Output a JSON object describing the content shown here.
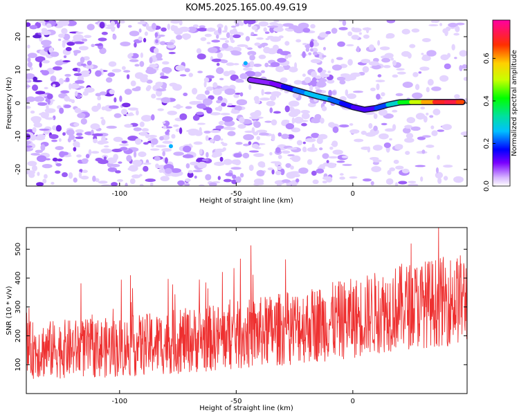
{
  "title": "KOM5.2025.165.00.49.G19",
  "chart_data": [
    {
      "type": "heatmap",
      "xlabel": "Height of straight line (km)",
      "ylabel": "Frequency (Hz)",
      "xlim": [
        -140,
        49
      ],
      "ylim": [
        -25,
        25
      ],
      "xticks": [
        -100,
        -50,
        0
      ],
      "yticks": [
        -20,
        -10,
        0,
        10,
        20
      ],
      "colorbar": {
        "label": "Normalized spectral amplitude",
        "range": [
          0.0,
          0.78
        ],
        "ticks": [
          0.0,
          0.2,
          0.4,
          0.6
        ],
        "tick_labels": [
          "0.0",
          "0.2",
          "0.4",
          "0.6"
        ]
      },
      "ridge": {
        "x": [
          -44,
          -35,
          -30,
          -25,
          -20,
          -15,
          -10,
          -5,
          0,
          5,
          10,
          15,
          20,
          25,
          30,
          35,
          40,
          45,
          47
        ],
        "y": [
          7,
          6,
          5,
          4,
          3,
          2,
          1.2,
          0,
          -1.2,
          -2,
          -1.5,
          -0.5,
          0.2,
          0.3,
          0.3,
          0.3,
          0.3,
          0.3,
          0.3
        ],
        "amplitude": [
          0.1,
          0.1,
          0.12,
          0.2,
          0.25,
          0.28,
          0.25,
          0.18,
          0.15,
          0.12,
          0.15,
          0.25,
          0.35,
          0.45,
          0.55,
          0.65,
          0.72,
          0.7,
          0.6
        ]
      }
    },
    {
      "type": "line",
      "xlabel": "Height of straight line (km)",
      "ylabel": "SNR (10 * v/v)",
      "xlim": [
        -140,
        49
      ],
      "ylim": [
        0,
        575
      ],
      "xticks": [
        -100,
        -50,
        0
      ],
      "yticks": [
        100,
        200,
        300,
        400,
        500
      ],
      "color": "#ee3030",
      "trend": {
        "x": [
          -140,
          -100,
          -50,
          0,
          20,
          49
        ],
        "baseline": [
          110,
          115,
          140,
          180,
          210,
          230
        ],
        "spread": [
          200,
          210,
          240,
          280,
          300,
          320
        ]
      }
    }
  ]
}
